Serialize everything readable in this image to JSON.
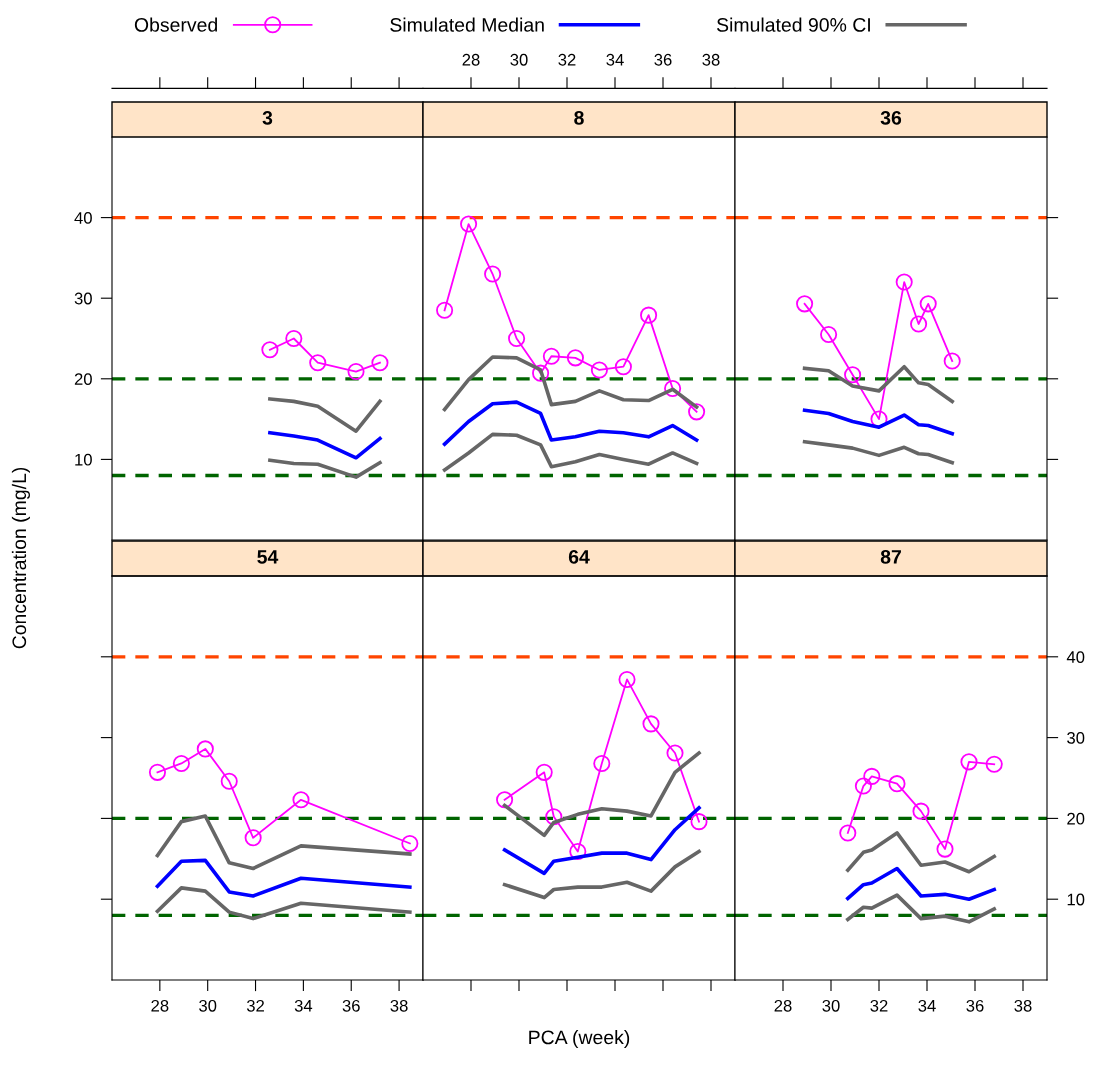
{
  "chart_data": [
    {
      "type": "line",
      "title": "3",
      "legend": "top",
      "xlim": [
        26,
        39
      ],
      "xticks": [
        28,
        30,
        32,
        34,
        36,
        38
      ],
      "ylim": [
        0,
        50
      ],
      "yticks": [
        10,
        20,
        30,
        40
      ],
      "tick_labels": "y",
      "ref_lines": [
        {
          "axis": "y",
          "value": 40,
          "color": "#ff4500",
          "line_style": "dashed"
        },
        {
          "axis": "y",
          "value": 20,
          "color": "#006400",
          "line_style": "dashed"
        },
        {
          "axis": "y",
          "value": 8,
          "color": "#006400",
          "line_style": "dashed"
        }
      ],
      "series": [
        {
          "name": "Observed",
          "color": "#ff00ff",
          "marker": "circle",
          "x": [
            32.6,
            33.6,
            34.6,
            36.2,
            37.2
          ],
          "values": [
            23.6,
            25.0,
            22.0,
            20.9,
            22.0
          ]
        },
        {
          "name": "Simulated Median",
          "color": "#0000ff",
          "marker": "none",
          "x": [
            32.6,
            33.6,
            34.6,
            36.2,
            37.2
          ],
          "values": [
            13.3,
            12.9,
            12.4,
            10.2,
            12.6
          ]
        },
        {
          "name": "Simulated 90% CI",
          "color": "#666666",
          "marker": "none",
          "x": [
            32.6,
            33.6,
            34.6,
            36.2,
            37.2
          ],
          "values": [
            17.5,
            17.2,
            16.6,
            13.5,
            17.2
          ]
        },
        {
          "color": "#666666",
          "marker": "none",
          "x": [
            32.6,
            33.6,
            34.6,
            36.2,
            37.2
          ],
          "values": [
            9.9,
            9.5,
            9.4,
            7.8,
            9.6
          ]
        }
      ]
    },
    {
      "type": "line",
      "title": "8",
      "xlim": [
        26,
        39
      ],
      "xticks": [
        28,
        30,
        32,
        34,
        36,
        38
      ],
      "ylim": [
        0,
        50
      ],
      "tick_labels": "x",
      "ref_lines": [
        {
          "axis": "y",
          "value": 40,
          "color": "#ff4500",
          "line_style": "dashed"
        },
        {
          "axis": "y",
          "value": 20,
          "color": "#006400",
          "line_style": "dashed"
        },
        {
          "axis": "y",
          "value": 8,
          "color": "#006400",
          "line_style": "dashed"
        }
      ],
      "series": [
        {
          "name": "Observed",
          "color": "#ff00ff",
          "marker": "circle",
          "x": [
            26.9,
            27.9,
            28.9,
            29.9,
            30.9,
            31.35,
            32.35,
            33.35,
            34.35,
            35.4,
            36.4,
            37.4
          ],
          "values": [
            28.5,
            39.2,
            33.0,
            25.0,
            20.7,
            22.8,
            22.6,
            21.1,
            21.5,
            27.9,
            18.8,
            15.9
          ]
        },
        {
          "name": "Simulated Median",
          "color": "#0000ff",
          "marker": "none",
          "x": [
            26.9,
            27.9,
            28.9,
            29.9,
            30.9,
            31.35,
            32.35,
            33.35,
            34.35,
            35.4,
            36.4,
            37.4
          ],
          "values": [
            11.9,
            14.7,
            16.9,
            17.1,
            15.7,
            12.4,
            12.8,
            13.5,
            13.3,
            12.8,
            14.2,
            12.4
          ]
        },
        {
          "name": "Simulated 90% CI",
          "color": "#666666",
          "marker": "none",
          "x": [
            26.9,
            27.9,
            28.9,
            29.9,
            30.9,
            31.35,
            32.35,
            33.35,
            34.35,
            35.4,
            36.4,
            37.4
          ],
          "values": [
            16.2,
            19.9,
            22.7,
            22.6,
            21.1,
            16.8,
            17.2,
            18.5,
            17.4,
            17.3,
            18.7,
            16.5
          ]
        },
        {
          "color": "#666666",
          "marker": "none",
          "x": [
            26.9,
            27.9,
            28.9,
            29.9,
            30.9,
            31.35,
            32.35,
            33.35,
            34.35,
            35.4,
            36.4,
            37.4
          ],
          "values": [
            8.7,
            10.8,
            13.1,
            13.0,
            11.8,
            9.1,
            9.7,
            10.6,
            10.0,
            9.4,
            10.8,
            9.5
          ]
        }
      ]
    },
    {
      "type": "line",
      "title": "36",
      "xlim": [
        26,
        39
      ],
      "xticks": [
        28,
        30,
        32,
        34,
        36,
        38
      ],
      "ylim": [
        0,
        50
      ],
      "yticks": [
        10,
        20,
        30,
        40
      ],
      "tick_labels": false,
      "ref_lines": [
        {
          "axis": "y",
          "value": 40,
          "color": "#ff4500",
          "line_style": "dashed"
        },
        {
          "axis": "y",
          "value": 20,
          "color": "#006400",
          "line_style": "dashed"
        },
        {
          "axis": "y",
          "value": 8,
          "color": "#006400",
          "line_style": "dashed"
        }
      ],
      "series": [
        {
          "name": "Observed",
          "color": "#ff00ff",
          "marker": "circle",
          "x": [
            28.9,
            29.9,
            30.9,
            32.0,
            33.05,
            33.65,
            34.05,
            35.05
          ],
          "values": [
            29.3,
            25.5,
            20.5,
            15.0,
            32.0,
            26.8,
            29.3,
            22.2
          ]
        },
        {
          "name": "Simulated Median",
          "color": "#0000ff",
          "marker": "none",
          "x": [
            28.9,
            29.9,
            30.9,
            32.0,
            33.05,
            33.65,
            34.05,
            35.05
          ],
          "values": [
            16.1,
            15.7,
            14.7,
            14.0,
            15.5,
            14.3,
            14.2,
            13.2
          ]
        },
        {
          "name": "Simulated 90% CI",
          "color": "#666666",
          "marker": "none",
          "x": [
            28.9,
            29.9,
            30.9,
            32.0,
            33.05,
            33.65,
            34.05,
            35.05
          ],
          "values": [
            21.3,
            21.0,
            19.1,
            18.5,
            21.5,
            19.5,
            19.3,
            17.2
          ]
        },
        {
          "color": "#666666",
          "marker": "none",
          "x": [
            28.9,
            29.9,
            30.9,
            32.0,
            33.05,
            33.65,
            34.05,
            35.05
          ],
          "values": [
            12.2,
            11.8,
            11.4,
            10.5,
            11.5,
            10.7,
            10.6,
            9.6
          ]
        }
      ]
    },
    {
      "type": "line",
      "title": "54",
      "ylabel": "Concentration (mg/L)",
      "xlim": [
        26,
        39
      ],
      "xticks": [
        28,
        30,
        32,
        34,
        36,
        38
      ],
      "ylim": [
        0,
        50
      ],
      "yticks": [
        10,
        20,
        30,
        40
      ],
      "tick_labels": "x",
      "ref_lines": [
        {
          "axis": "y",
          "value": 40,
          "color": "#ff4500",
          "line_style": "dashed"
        },
        {
          "axis": "y",
          "value": 20,
          "color": "#006400",
          "line_style": "dashed"
        },
        {
          "axis": "y",
          "value": 8,
          "color": "#006400",
          "line_style": "dashed"
        }
      ],
      "series": [
        {
          "name": "Observed",
          "color": "#ff00ff",
          "marker": "circle",
          "x": [
            27.9,
            28.9,
            29.9,
            30.9,
            31.9,
            33.9,
            38.45
          ],
          "values": [
            25.7,
            26.8,
            28.6,
            24.6,
            17.6,
            22.3,
            16.9
          ]
        },
        {
          "name": "Simulated Median",
          "color": "#0000ff",
          "marker": "none",
          "x": [
            27.9,
            28.9,
            29.9,
            30.9,
            31.9,
            33.9,
            38.45
          ],
          "values": [
            11.6,
            14.7,
            14.8,
            10.9,
            10.4,
            12.6,
            11.5
          ]
        },
        {
          "name": "Simulated 90% CI",
          "color": "#666666",
          "marker": "none",
          "x": [
            27.9,
            28.9,
            29.9,
            30.9,
            31.9,
            33.9,
            38.45
          ],
          "values": [
            15.4,
            19.6,
            20.3,
            14.5,
            13.8,
            16.6,
            15.6
          ]
        },
        {
          "color": "#666666",
          "marker": "none",
          "x": [
            27.9,
            28.9,
            29.9,
            30.9,
            31.9,
            33.9,
            38.45
          ],
          "values": [
            8.5,
            11.4,
            11.0,
            8.4,
            7.6,
            9.5,
            8.4
          ]
        }
      ]
    },
    {
      "type": "line",
      "title": "64",
      "xlabel": "PCA (week)",
      "xlim": [
        26,
        39
      ],
      "xticks": [
        28,
        30,
        32,
        34,
        36,
        38
      ],
      "ylim": [
        0,
        50
      ],
      "tick_labels": false,
      "ref_lines": [
        {
          "axis": "y",
          "value": 40,
          "color": "#ff4500",
          "line_style": "dashed"
        },
        {
          "axis": "y",
          "value": 20,
          "color": "#006400",
          "line_style": "dashed"
        },
        {
          "axis": "y",
          "value": 8,
          "color": "#006400",
          "line_style": "dashed"
        }
      ],
      "series": [
        {
          "name": "Observed",
          "color": "#ff00ff",
          "marker": "circle",
          "x": [
            29.4,
            31.05,
            31.45,
            32.45,
            33.45,
            34.5,
            35.5,
            36.5,
            37.5
          ],
          "values": [
            22.3,
            25.7,
            20.2,
            15.9,
            26.8,
            37.2,
            31.7,
            28.1,
            19.6
          ]
        },
        {
          "name": "Simulated Median",
          "color": "#0000ff",
          "marker": "none",
          "x": [
            29.4,
            31.05,
            31.45,
            32.45,
            33.45,
            34.5,
            35.5,
            36.5,
            37.5
          ],
          "values": [
            16.1,
            13.2,
            14.7,
            15.2,
            15.7,
            15.7,
            14.9,
            18.6,
            21.3
          ]
        },
        {
          "name": "Simulated 90% CI",
          "color": "#666666",
          "marker": "none",
          "x": [
            29.4,
            31.05,
            31.45,
            32.45,
            33.45,
            34.5,
            35.5,
            36.5,
            37.5
          ],
          "values": [
            21.6,
            17.9,
            19.5,
            20.5,
            21.2,
            20.9,
            20.3,
            25.7,
            28.1
          ]
        },
        {
          "color": "#666666",
          "marker": "none",
          "x": [
            29.4,
            31.05,
            31.45,
            32.45,
            33.45,
            34.5,
            35.5,
            36.5,
            37.5
          ],
          "values": [
            11.8,
            10.2,
            11.2,
            11.5,
            11.5,
            12.1,
            11.0,
            14.0,
            15.9
          ]
        }
      ]
    },
    {
      "type": "line",
      "title": "87",
      "xlim": [
        26,
        39
      ],
      "xticks": [
        28,
        30,
        32,
        34,
        36,
        38
      ],
      "ylim": [
        0,
        50
      ],
      "yticks": [
        10,
        20,
        30,
        40
      ],
      "ref_lines": [
        {
          "axis": "y",
          "value": 40,
          "color": "#ff4500",
          "line_style": "dashed"
        },
        {
          "axis": "y",
          "value": 20,
          "color": "#006400",
          "line_style": "dashed"
        },
        {
          "axis": "y",
          "value": 8,
          "color": "#006400",
          "line_style": "dashed"
        }
      ],
      "series": [
        {
          "name": "Observed",
          "color": "#ff00ff",
          "marker": "circle",
          "x": [
            30.7,
            31.35,
            31.7,
            32.75,
            33.75,
            34.75,
            35.75,
            36.8
          ],
          "values": [
            18.2,
            24.0,
            25.2,
            24.3,
            20.9,
            16.2,
            27.0,
            26.7
          ]
        },
        {
          "name": "Simulated Median",
          "color": "#0000ff",
          "marker": "none",
          "x": [
            30.7,
            31.35,
            31.7,
            32.75,
            33.75,
            34.75,
            35.75,
            36.8
          ],
          "values": [
            10.1,
            11.8,
            12.0,
            13.8,
            10.4,
            10.6,
            10.0,
            11.2
          ]
        },
        {
          "name": "Simulated 90% CI",
          "color": "#666666",
          "marker": "none",
          "x": [
            30.7,
            31.35,
            31.7,
            32.75,
            33.75,
            34.75,
            35.75,
            36.8
          ],
          "values": [
            13.6,
            15.8,
            16.1,
            18.2,
            14.2,
            14.6,
            13.4,
            15.3
          ]
        },
        {
          "color": "#666666",
          "marker": "none",
          "x": [
            30.7,
            31.35,
            31.7,
            32.75,
            33.75,
            34.75,
            35.75,
            36.8
          ],
          "values": [
            7.5,
            9.0,
            8.9,
            10.5,
            7.6,
            7.9,
            7.2,
            8.8
          ]
        }
      ]
    }
  ]
}
